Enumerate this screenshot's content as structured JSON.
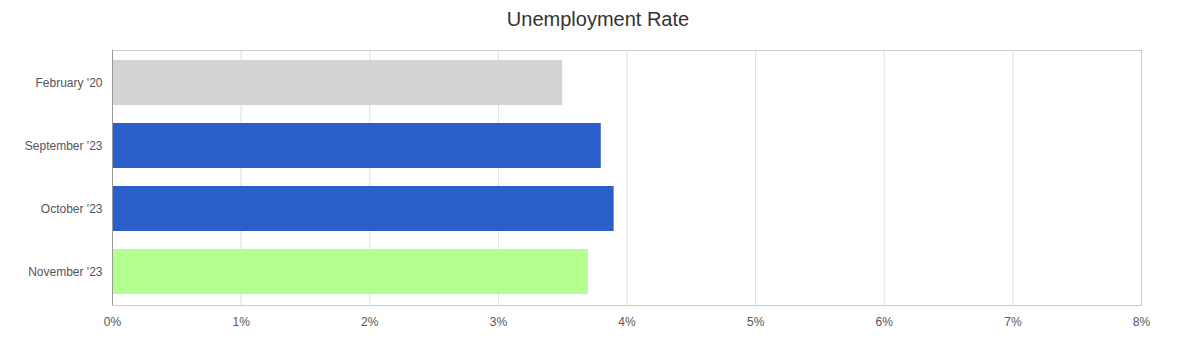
{
  "chart_data": {
    "type": "bar",
    "title": "Unemployment Rate",
    "orientation": "horizontal",
    "categories": [
      "February '20",
      "September '23",
      "October '23",
      "November '23"
    ],
    "values": [
      3.5,
      3.8,
      3.9,
      3.7
    ],
    "colors": [
      "#d3d3d3",
      "#2a5fca",
      "#2a5fca",
      "#b3ff8f"
    ],
    "xlim": [
      0,
      8
    ],
    "xticks": [
      {
        "value": 0,
        "label": "0%"
      },
      {
        "value": 1,
        "label": "1%"
      },
      {
        "value": 2,
        "label": "2%"
      },
      {
        "value": 3,
        "label": "3%"
      },
      {
        "value": 4,
        "label": "4%"
      },
      {
        "value": 5,
        "label": "5%"
      },
      {
        "value": 6,
        "label": "6%"
      },
      {
        "value": 7,
        "label": "7%"
      },
      {
        "value": 8,
        "label": "8%"
      }
    ],
    "grid": true
  }
}
